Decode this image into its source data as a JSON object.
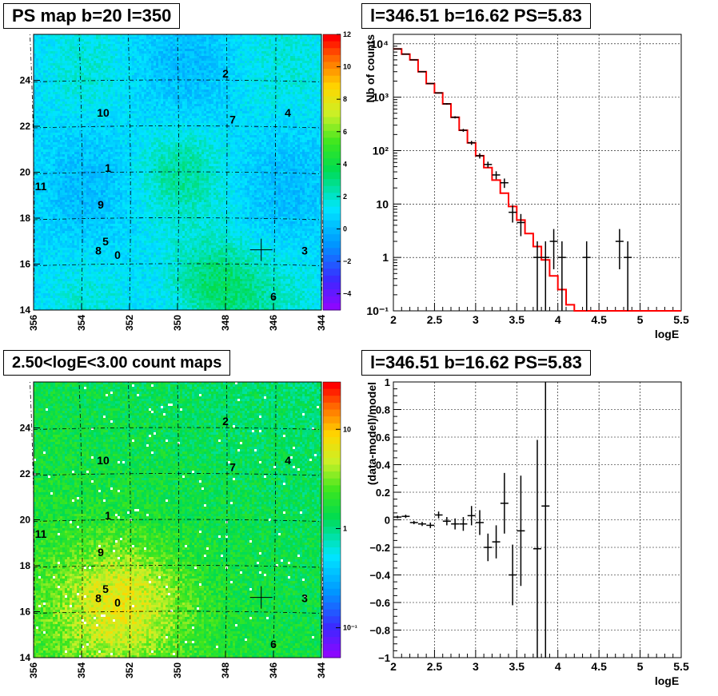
{
  "panels": {
    "ps_map": {
      "title": "PS map b=20 l=350",
      "x_ticks": [
        "356",
        "354",
        "352",
        "350",
        "348",
        "346",
        "344"
      ],
      "y_ticks": [
        "14",
        "16",
        "18",
        "20",
        "22",
        "24"
      ],
      "colorbar_ticks": [
        "12",
        "10",
        "8",
        "6",
        "4",
        "2",
        "0",
        "−2",
        "−4"
      ],
      "sources": [
        "0",
        "1",
        "2",
        "3",
        "4",
        "5",
        "6",
        "7",
        "8",
        "9",
        "10",
        "11"
      ]
    },
    "count_map": {
      "title": "2.50<logE<3.00 count maps",
      "x_ticks": [
        "356",
        "354",
        "352",
        "350",
        "348",
        "346",
        "344"
      ],
      "y_ticks": [
        "14",
        "16",
        "18",
        "20",
        "22",
        "24"
      ],
      "colorbar_ticks": [
        "10",
        "1",
        "10⁻¹"
      ],
      "sources": [
        "0",
        "1",
        "2",
        "3",
        "4",
        "5",
        "6",
        "7",
        "8",
        "9",
        "10",
        "11"
      ]
    },
    "spectrum": {
      "title": "l=346.51 b=16.62 PS=5.83",
      "xlabel": "logE",
      "ylabel": "Nb of counts",
      "x_ticks": [
        "2",
        "2.5",
        "3",
        "3.5",
        "4",
        "4.5",
        "5",
        "5.5"
      ],
      "y_ticks": [
        "10⁻¹",
        "1",
        "10",
        "10²",
        "10³",
        "10⁴"
      ]
    },
    "residual": {
      "title": "l=346.51 b=16.62 PS=5.83",
      "xlabel": "logE",
      "ylabel": "(data-model)/model",
      "x_ticks": [
        "2",
        "2.5",
        "3",
        "3.5",
        "4",
        "4.5",
        "5",
        "5.5"
      ],
      "y_ticks": [
        "−1",
        "−0.8",
        "−0.6",
        "−0.4",
        "−0.2",
        "0",
        "0.2",
        "0.4",
        "0.6",
        "0.8",
        "1"
      ]
    }
  },
  "chart_data": [
    {
      "type": "heatmap",
      "title": "PS map b=20 l=350",
      "xlim": [
        356,
        344
      ],
      "ylim": [
        14,
        26
      ],
      "zlim": [
        -5,
        12
      ],
      "x_ticks": [
        356,
        354,
        352,
        350,
        348,
        346,
        344
      ],
      "y_ticks": [
        14,
        16,
        18,
        20,
        22,
        24
      ],
      "colorbar_ticks": [
        12,
        10,
        8,
        6,
        4,
        2,
        0,
        -2,
        -4
      ],
      "sources": [
        {
          "label": "0",
          "l": 352.5,
          "b": 16.4
        },
        {
          "label": "1",
          "l": 352.9,
          "b": 20.2
        },
        {
          "label": "2",
          "l": 348.0,
          "b": 24.3
        },
        {
          "label": "3",
          "l": 344.7,
          "b": 16.6
        },
        {
          "label": "4",
          "l": 345.4,
          "b": 22.6
        },
        {
          "label": "5",
          "l": 353.0,
          "b": 17.0
        },
        {
          "label": "6",
          "l": 346.0,
          "b": 14.6
        },
        {
          "label": "7",
          "l": 347.7,
          "b": 22.3
        },
        {
          "label": "8",
          "l": 353.3,
          "b": 16.6
        },
        {
          "label": "9",
          "l": 353.2,
          "b": 18.6
        },
        {
          "label": "10",
          "l": 353.1,
          "b": 22.6
        },
        {
          "label": "11",
          "l": 355.7,
          "b": 19.4
        }
      ],
      "marker": {
        "l": 346.51,
        "b": 16.62
      }
    },
    {
      "type": "heatmap",
      "title": "2.50<logE<3.00 count maps",
      "xlim": [
        356,
        344
      ],
      "ylim": [
        14,
        26
      ],
      "z_scale": "log",
      "zlim": [
        0.05,
        30
      ],
      "x_ticks": [
        356,
        354,
        352,
        350,
        348,
        346,
        344
      ],
      "y_ticks": [
        14,
        16,
        18,
        20,
        22,
        24
      ],
      "colorbar_ticks": [
        10,
        1,
        0.1
      ],
      "sources": [
        {
          "label": "0",
          "l": 352.5,
          "b": 16.4
        },
        {
          "label": "1",
          "l": 352.9,
          "b": 20.2
        },
        {
          "label": "2",
          "l": 348.0,
          "b": 24.3
        },
        {
          "label": "3",
          "l": 344.7,
          "b": 16.6
        },
        {
          "label": "4",
          "l": 345.4,
          "b": 22.6
        },
        {
          "label": "5",
          "l": 353.0,
          "b": 17.0
        },
        {
          "label": "6",
          "l": 346.0,
          "b": 14.6
        },
        {
          "label": "7",
          "l": 347.7,
          "b": 22.3
        },
        {
          "label": "8",
          "l": 353.3,
          "b": 16.6
        },
        {
          "label": "9",
          "l": 353.2,
          "b": 18.6
        },
        {
          "label": "10",
          "l": 353.1,
          "b": 22.6
        },
        {
          "label": "11",
          "l": 355.7,
          "b": 19.4
        }
      ],
      "marker": {
        "l": 346.51,
        "b": 16.62
      }
    },
    {
      "type": "line",
      "title": "l=346.51 b=16.62 PS=5.83",
      "xlabel": "logE",
      "ylabel": "Nb of counts",
      "xlim": [
        2,
        5.5
      ],
      "ylim": [
        0.1,
        15000
      ],
      "y_scale": "log",
      "grid": true,
      "model_step": [
        {
          "x0": 2.0,
          "x1": 2.1,
          "y": 8000
        },
        {
          "x0": 2.1,
          "x1": 2.2,
          "y": 6400
        },
        {
          "x0": 2.2,
          "x1": 2.3,
          "y": 5000
        },
        {
          "x0": 2.3,
          "x1": 2.4,
          "y": 3000
        },
        {
          "x0": 2.4,
          "x1": 2.5,
          "y": 1800
        },
        {
          "x0": 2.5,
          "x1": 2.6,
          "y": 1200
        },
        {
          "x0": 2.6,
          "x1": 2.7,
          "y": 750
        },
        {
          "x0": 2.7,
          "x1": 2.8,
          "y": 420
        },
        {
          "x0": 2.8,
          "x1": 2.9,
          "y": 240
        },
        {
          "x0": 2.9,
          "x1": 3.0,
          "y": 140
        },
        {
          "x0": 3.0,
          "x1": 3.1,
          "y": 80
        },
        {
          "x0": 3.1,
          "x1": 3.2,
          "y": 48
        },
        {
          "x0": 3.2,
          "x1": 3.3,
          "y": 28
        },
        {
          "x0": 3.3,
          "x1": 3.4,
          "y": 16
        },
        {
          "x0": 3.4,
          "x1": 3.5,
          "y": 9
        },
        {
          "x0": 3.5,
          "x1": 3.6,
          "y": 5
        },
        {
          "x0": 3.6,
          "x1": 3.7,
          "y": 2.8
        },
        {
          "x0": 3.7,
          "x1": 3.8,
          "y": 1.6
        },
        {
          "x0": 3.8,
          "x1": 3.9,
          "y": 0.9
        },
        {
          "x0": 3.9,
          "x1": 4.0,
          "y": 0.45
        },
        {
          "x0": 4.0,
          "x1": 4.1,
          "y": 0.25
        },
        {
          "x0": 4.1,
          "x1": 4.2,
          "y": 0.13
        },
        {
          "x0": 4.2,
          "x1": 5.5,
          "y": 0.1
        }
      ],
      "data_points": [
        {
          "x": 2.05,
          "y": 8000,
          "ylo": 7900,
          "yhi": 8100
        },
        {
          "x": 2.15,
          "y": 6400,
          "ylo": 6300,
          "yhi": 6500
        },
        {
          "x": 2.25,
          "y": 5000,
          "ylo": 4900,
          "yhi": 5100
        },
        {
          "x": 2.35,
          "y": 3000,
          "ylo": 2950,
          "yhi": 3050
        },
        {
          "x": 2.45,
          "y": 1800,
          "ylo": 1760,
          "yhi": 1840
        },
        {
          "x": 2.55,
          "y": 1200,
          "ylo": 1170,
          "yhi": 1230
        },
        {
          "x": 2.65,
          "y": 750,
          "ylo": 725,
          "yhi": 775
        },
        {
          "x": 2.75,
          "y": 420,
          "ylo": 400,
          "yhi": 440
        },
        {
          "x": 2.85,
          "y": 240,
          "ylo": 225,
          "yhi": 255
        },
        {
          "x": 2.95,
          "y": 140,
          "ylo": 128,
          "yhi": 152
        },
        {
          "x": 3.05,
          "y": 80,
          "ylo": 71,
          "yhi": 89
        },
        {
          "x": 3.15,
          "y": 55,
          "ylo": 48,
          "yhi": 62
        },
        {
          "x": 3.25,
          "y": 35,
          "ylo": 29,
          "yhi": 41
        },
        {
          "x": 3.35,
          "y": 25,
          "ylo": 20,
          "yhi": 30
        },
        {
          "x": 3.45,
          "y": 7,
          "ylo": 4.5,
          "yhi": 9.5
        },
        {
          "x": 3.55,
          "y": 4.5,
          "ylo": 2.5,
          "yhi": 6.5
        },
        {
          "x": 3.75,
          "y": 1,
          "ylo": 0.1,
          "yhi": 2
        },
        {
          "x": 3.85,
          "y": 1,
          "ylo": 0.1,
          "yhi": 2
        },
        {
          "x": 3.95,
          "y": 2,
          "ylo": 0.6,
          "yhi": 3.4
        },
        {
          "x": 4.05,
          "y": 1,
          "ylo": 0.1,
          "yhi": 2
        },
        {
          "x": 4.35,
          "y": 1,
          "ylo": 0.1,
          "yhi": 2
        },
        {
          "x": 4.75,
          "y": 2,
          "ylo": 0.6,
          "yhi": 3.4
        },
        {
          "x": 4.85,
          "y": 1,
          "ylo": 0.1,
          "yhi": 2
        }
      ]
    },
    {
      "type": "scatter",
      "title": "l=346.51 b=16.62 PS=5.83",
      "xlabel": "logE",
      "ylabel": "(data-model)/model",
      "xlim": [
        2,
        5.5
      ],
      "ylim": [
        -1,
        1
      ],
      "grid": true,
      "data_points": [
        {
          "x": 2.05,
          "y": 0.02,
          "err": 0.01
        },
        {
          "x": 2.15,
          "y": 0.025,
          "err": 0.012
        },
        {
          "x": 2.25,
          "y": -0.02,
          "err": 0.012
        },
        {
          "x": 2.35,
          "y": -0.03,
          "err": 0.015
        },
        {
          "x": 2.45,
          "y": -0.04,
          "err": 0.02
        },
        {
          "x": 2.55,
          "y": 0.035,
          "err": 0.025
        },
        {
          "x": 2.65,
          "y": -0.01,
          "err": 0.03
        },
        {
          "x": 2.75,
          "y": -0.03,
          "err": 0.04
        },
        {
          "x": 2.85,
          "y": -0.03,
          "err": 0.05
        },
        {
          "x": 2.95,
          "y": 0.03,
          "err": 0.07
        },
        {
          "x": 3.05,
          "y": -0.02,
          "err": 0.09
        },
        {
          "x": 3.15,
          "y": -0.2,
          "err": 0.1
        },
        {
          "x": 3.25,
          "y": -0.16,
          "err": 0.12
        },
        {
          "x": 3.35,
          "y": 0.12,
          "err": 0.22
        },
        {
          "x": 3.45,
          "y": -0.4,
          "err": 0.22
        },
        {
          "x": 3.55,
          "y": -0.08,
          "err": 0.4
        },
        {
          "x": 3.75,
          "y": -0.21,
          "err": 0.79
        },
        {
          "x": 3.85,
          "y": 0.1,
          "err": 1.1
        }
      ]
    }
  ]
}
